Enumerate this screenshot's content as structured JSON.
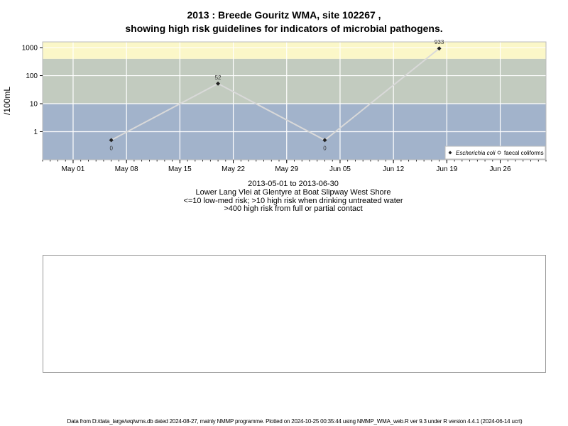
{
  "title_line1": "2013 : Breede Gouritz WMA, site 102267 ,",
  "title_line2": "showing high risk guidelines for indicators of microbial pathogens.",
  "caption": {
    "date_range": "2013-05-01 to 2013-06-30",
    "site_name": "Lower Lang Vlei at Glentyre at Boat Slipway West Shore",
    "guideline_low": "<=10 low-med risk; >10 high risk when drinking untreated water",
    "guideline_high": ">400 high risk from full or partial contact"
  },
  "footer": "Data from D:/data_large/wq/wms.db dated 2024-08-27, mainly NMMP programme. Plotted on 2024-10-25 00:35:44 using NMMP_WMA_web.R ver 9.3 under R version 4.4.1 (2024-06-14 ucrt)",
  "chart_data": {
    "type": "line",
    "ylabel": "/100mL",
    "y_scale": "log",
    "ylim": [
      0.1,
      1600
    ],
    "y_ticks": [
      1,
      10,
      100,
      1000
    ],
    "y_tick_labels": [
      "1",
      "10",
      "100",
      "1000"
    ],
    "xlim": [
      "2013-04-27",
      "2013-07-02"
    ],
    "x_tick_dates": [
      "2013-05-01",
      "2013-05-08",
      "2013-05-15",
      "2013-05-22",
      "2013-05-29",
      "2013-06-05",
      "2013-06-12",
      "2013-06-19",
      "2013-06-26"
    ],
    "x_tick_labels": [
      "May 01",
      "May 08",
      "May 15",
      "May 22",
      "May 29",
      "Jun 05",
      "Jun 12",
      "Jun 19",
      "Jun 26"
    ],
    "risk_bands": [
      {
        "from": 0.1,
        "to": 10,
        "color": "#a2b3cb"
      },
      {
        "from": 10,
        "to": 400,
        "color": "#c2cbbf"
      },
      {
        "from": 400,
        "to": 1600,
        "color": "#fbf7c8"
      }
    ],
    "grid": true,
    "legend_position": "bottom-right",
    "series": [
      {
        "name": "Escherichia coli",
        "marker": "diamond",
        "line_color": "#d9d9d9",
        "marker_color": "#222222",
        "x": [
          "2013-05-06",
          "2013-05-20",
          "2013-06-03",
          "2013-06-18"
        ],
        "y": [
          0.5,
          52,
          0.5,
          933
        ],
        "labels": [
          "0",
          "52",
          "0",
          "933"
        ]
      },
      {
        "name": "faecal coliforms",
        "marker": "circle",
        "x": [],
        "y": [],
        "labels": []
      }
    ]
  }
}
